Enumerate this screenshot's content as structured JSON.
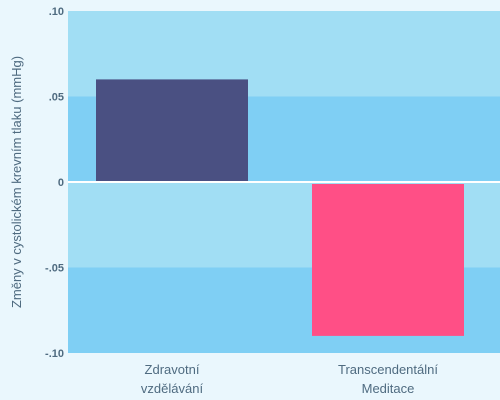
{
  "chart_data": {
    "type": "bar",
    "title": "",
    "xlabel": "",
    "ylabel": "Změny v cystolickém krevním tlaku (mmHg)",
    "ylim": [
      -0.1,
      0.1
    ],
    "yticks": [
      {
        "value": 0.1,
        "label": ".10"
      },
      {
        "value": 0.05,
        "label": ".05"
      },
      {
        "value": 0.0,
        "label": "0"
      },
      {
        "value": -0.05,
        "label": "-.05"
      },
      {
        "value": -0.1,
        "label": "-.10"
      }
    ],
    "categories": [
      {
        "lines": [
          "Zdravotní",
          "vzdělávání"
        ]
      },
      {
        "lines": [
          "Transcendentální",
          "Meditace"
        ]
      }
    ],
    "values": [
      0.06,
      -0.09
    ],
    "bar_colors": [
      "#4a5082",
      "#ff4f86"
    ],
    "band_colors": [
      "#a1def4",
      "#7fcff4"
    ],
    "zero_line_color": "#ffffff"
  }
}
